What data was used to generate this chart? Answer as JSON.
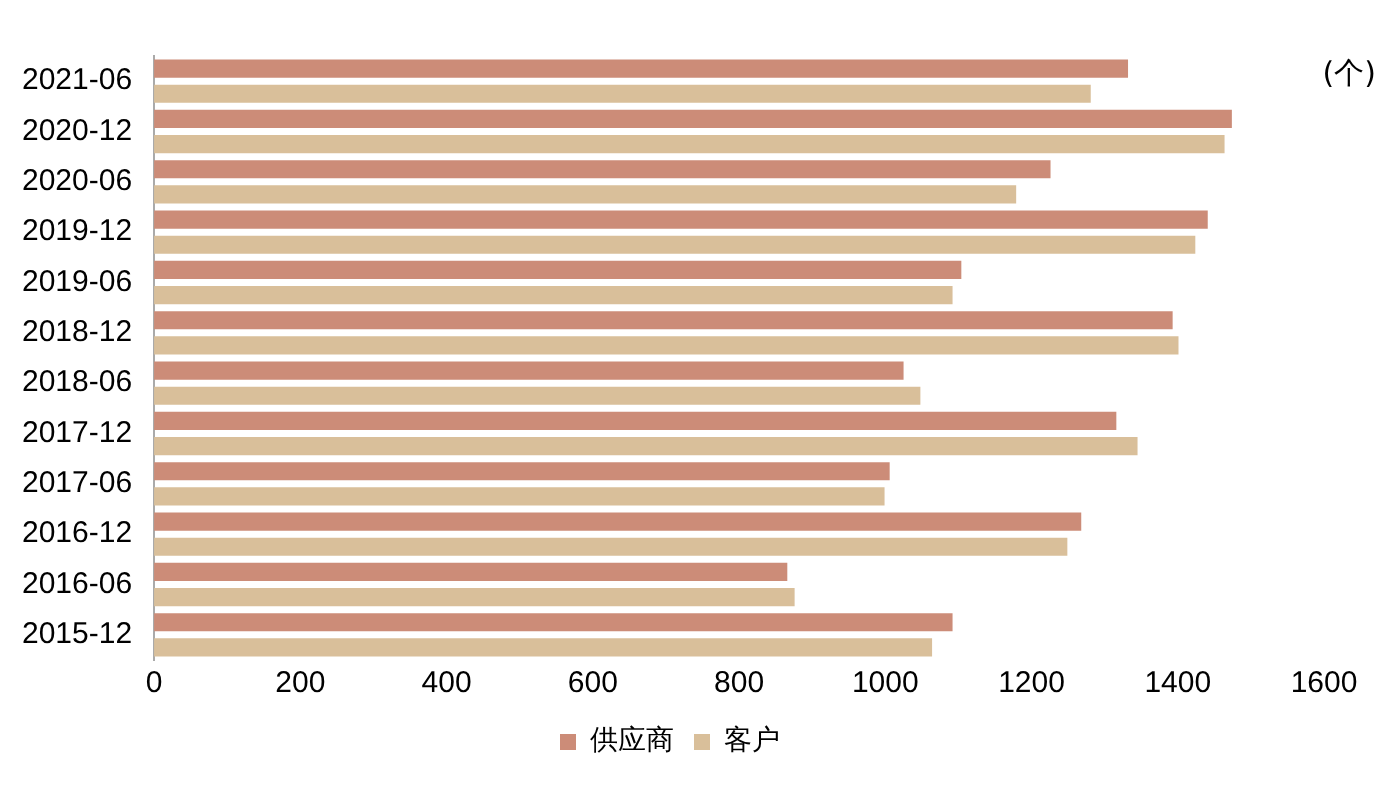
{
  "chart_data": {
    "type": "bar",
    "orientation": "horizontal",
    "categories": [
      "2021-06",
      "2020-12",
      "2020-06",
      "2019-12",
      "2019-06",
      "2018-12",
      "2018-06",
      "2017-12",
      "2017-06",
      "2016-12",
      "2016-06",
      "2015-12"
    ],
    "series": [
      {
        "name": "供应商",
        "color": "#cc8c78",
        "values": [
          1332,
          1474,
          1226,
          1441,
          1104,
          1393,
          1025,
          1316,
          1006,
          1268,
          866,
          1092
        ]
      },
      {
        "name": "客户",
        "color": "#d9bf9a",
        "values": [
          1281,
          1464,
          1179,
          1424,
          1092,
          1401,
          1048,
          1345,
          999,
          1249,
          876,
          1064
        ]
      }
    ],
    "xlim": [
      0,
      1600
    ],
    "xticks": [
      0,
      200,
      400,
      600,
      800,
      1000,
      1200,
      1400,
      1600
    ],
    "grid": false,
    "legend": "bottom",
    "annotations": [
      "(个)"
    ]
  }
}
